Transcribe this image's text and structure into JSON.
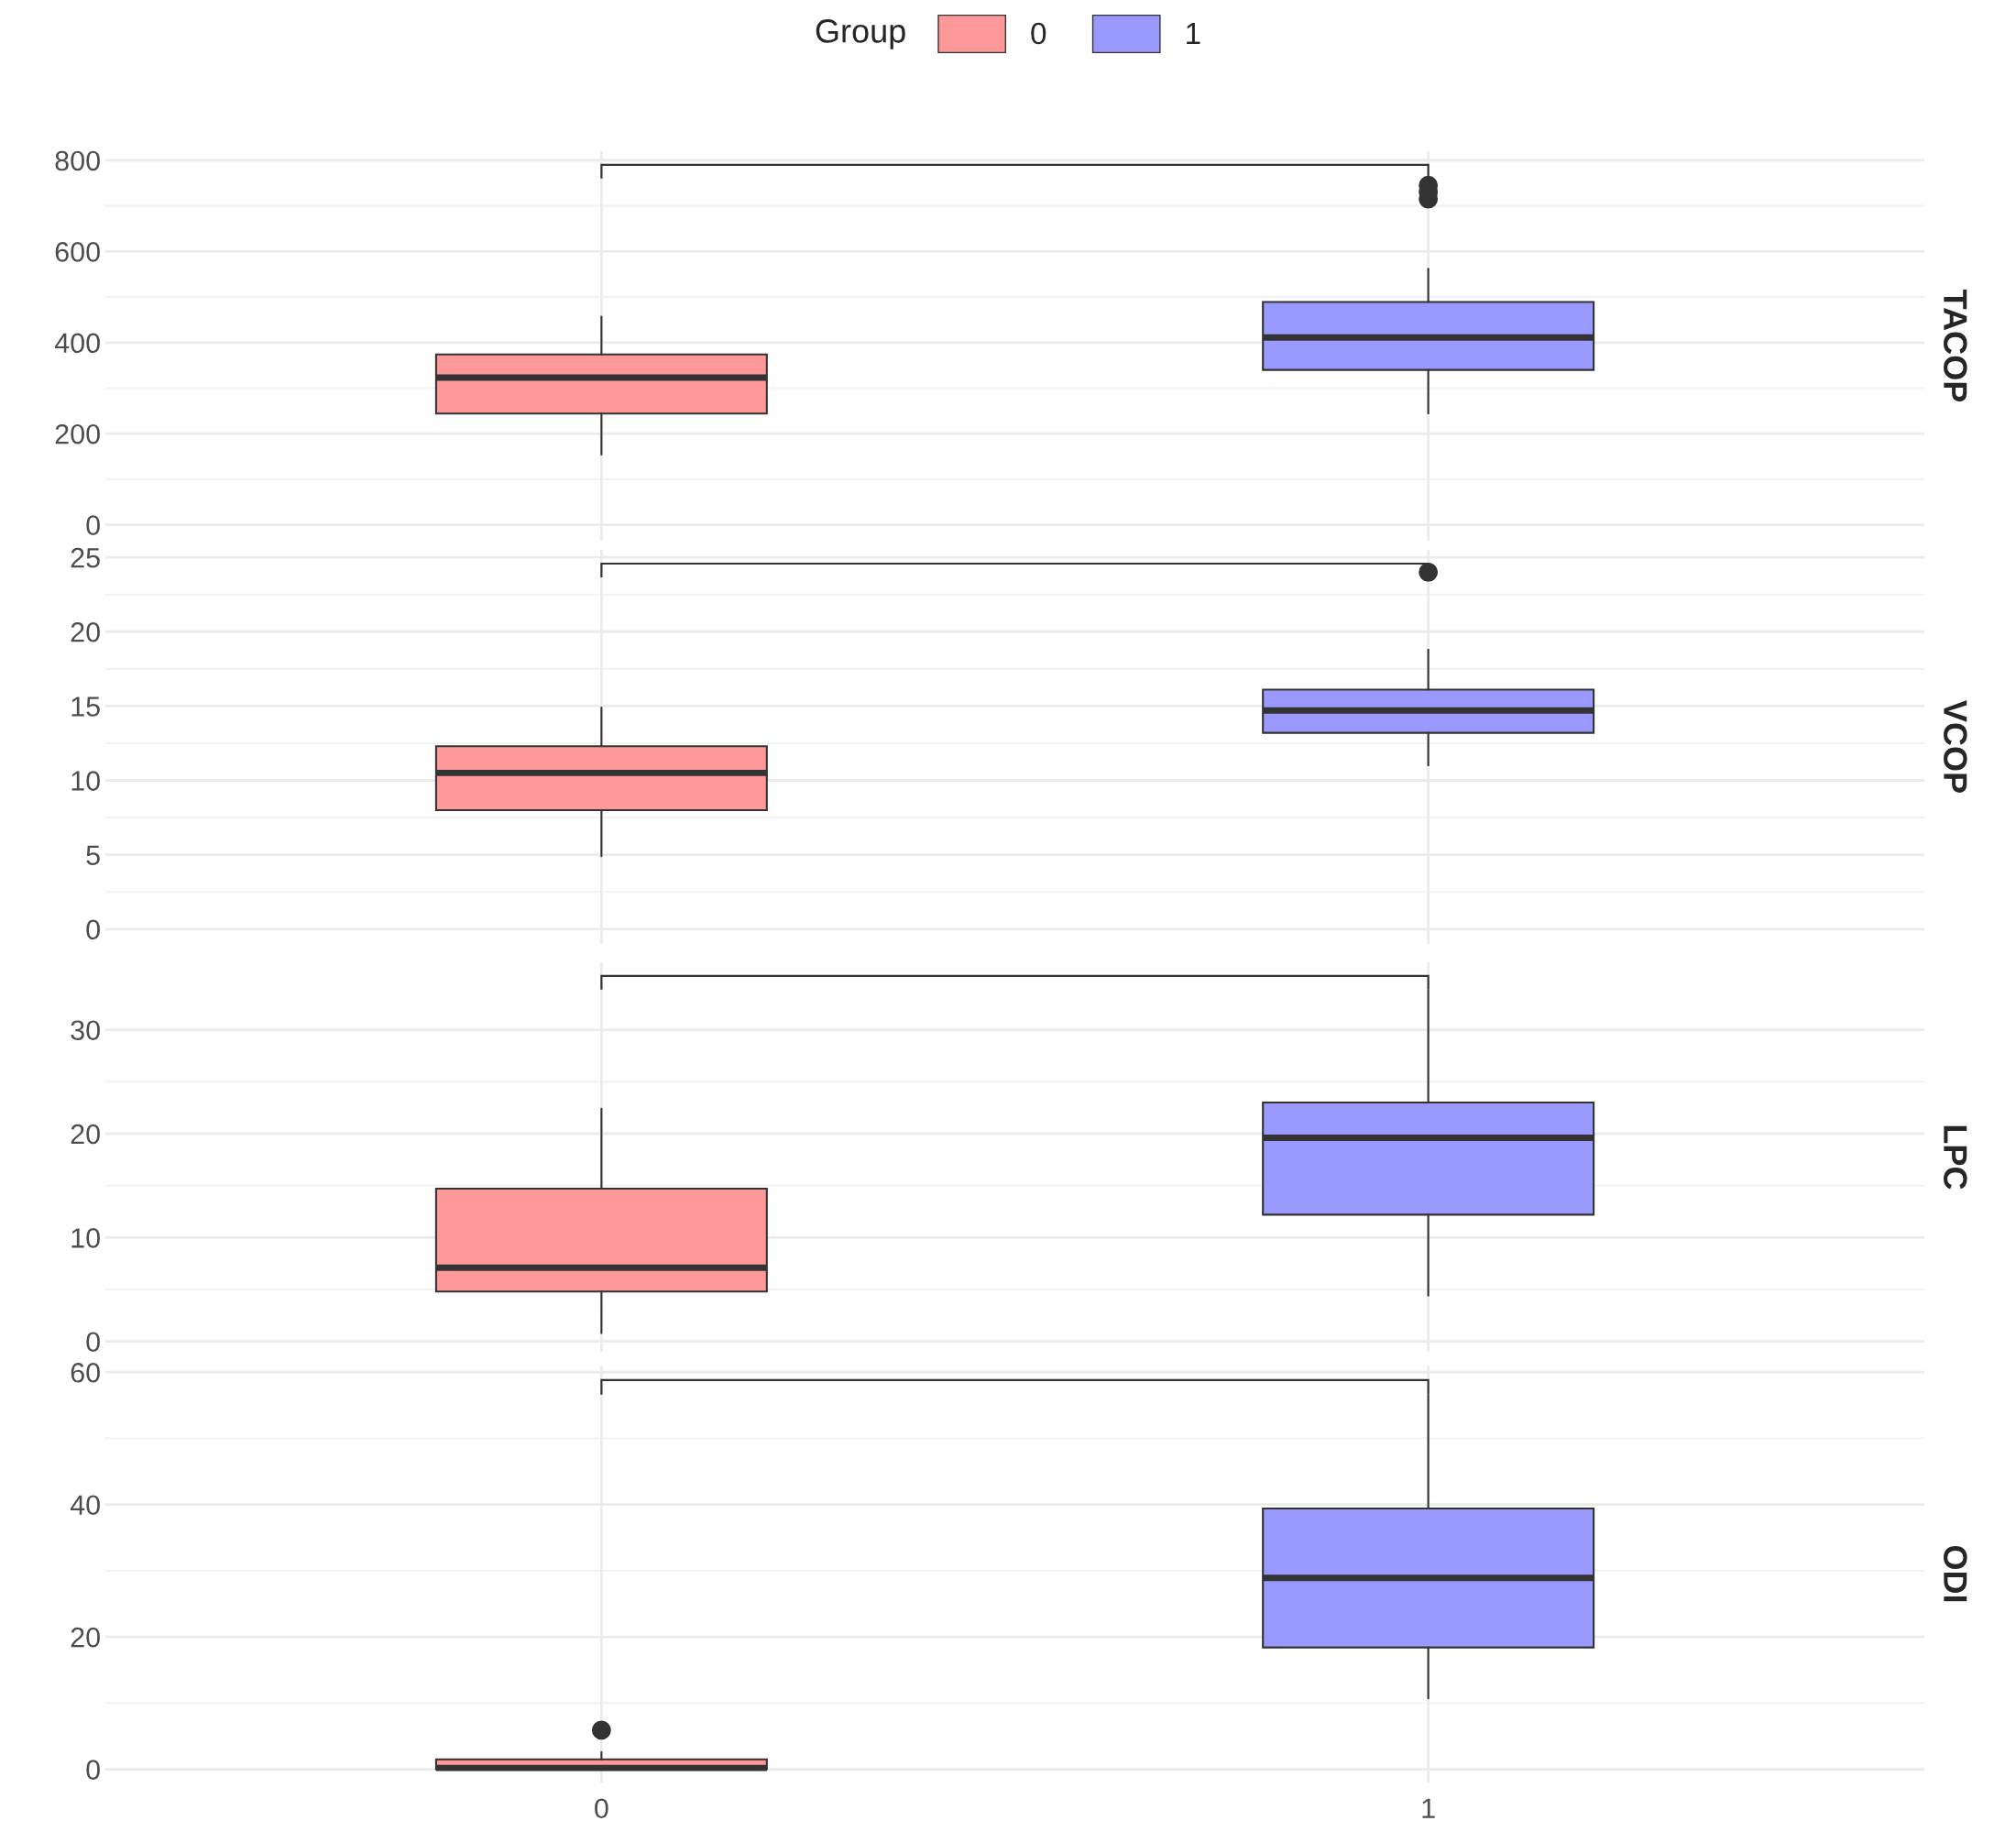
{
  "chart_data": [
    {
      "type": "box",
      "ylabel": "TACOP",
      "categories": [
        "0",
        "1"
      ],
      "legend_title": "Group",
      "legend": "top",
      "grid": true,
      "tick_labels": "y",
      "ylim": [
        -35,
        820
      ],
      "yticks": [
        0,
        200,
        400,
        600,
        800
      ],
      "series": [
        {
          "name": "0",
          "color": "#ff9999",
          "x": [
            "0"
          ],
          "boxes": [
            {
              "low": 154,
              "q1": 244,
              "median": 323,
              "q3": 374,
              "high": 457
            }
          ]
        },
        {
          "name": "1",
          "color": "#9999ff",
          "x": [
            "1"
          ],
          "boxes": [
            {
              "low": 244,
              "q1": 340,
              "median": 411,
              "q3": 489,
              "high": 562,
              "outliers": [
                715,
                730,
                745
              ]
            }
          ]
        }
      ]
    },
    {
      "type": "box",
      "ylabel": "VCOP",
      "categories": [
        "0",
        "1"
      ],
      "grid": true,
      "tick_labels": "y",
      "ylim": [
        -1,
        25.5
      ],
      "yticks": [
        0,
        5,
        10,
        15,
        20,
        25
      ],
      "series": [
        {
          "color": "#ff9999",
          "x": [
            "0"
          ],
          "boxes": [
            {
              "low": 4.9,
              "q1": 8.0,
              "median": 10.5,
              "q3": 12.3,
              "high": 14.9
            }
          ]
        },
        {
          "color": "#9999ff",
          "x": [
            "1"
          ],
          "boxes": [
            {
              "low": 11.0,
              "q1": 13.2,
              "median": 14.7,
              "q3": 16.1,
              "high": 18.8,
              "outliers": [
                24.0
              ]
            }
          ]
        }
      ]
    },
    {
      "type": "box",
      "ylabel": "LPC",
      "categories": [
        "0",
        "1"
      ],
      "grid": true,
      "tick_labels": "y",
      "ylim": [
        -1,
        36.5
      ],
      "yticks": [
        0,
        10,
        20,
        30
      ],
      "series": [
        {
          "color": "#ff9999",
          "x": [
            "0"
          ],
          "boxes": [
            {
              "low": 0.8,
              "q1": 4.8,
              "median": 7.1,
              "q3": 14.7,
              "high": 22.4
            }
          ]
        },
        {
          "color": "#9999ff",
          "x": [
            "1"
          ],
          "boxes": [
            {
              "low": 4.4,
              "q1": 12.2,
              "median": 19.6,
              "q3": 23.0,
              "high": 33.8
            }
          ]
        }
      ]
    },
    {
      "type": "box",
      "ylabel": "ODI",
      "categories": [
        "0",
        "1"
      ],
      "grid": true,
      "ylim": [
        -2,
        61
      ],
      "yticks": [
        0,
        20,
        40,
        60
      ],
      "series": [
        {
          "color": "#ff9999",
          "x": [
            "0"
          ],
          "boxes": [
            {
              "low": 0,
              "q1": 0,
              "median": 0.2,
              "q3": 1.5,
              "high": 2.6,
              "outliers": [
                5.9
              ]
            }
          ]
        },
        {
          "color": "#9999ff",
          "x": [
            "1"
          ],
          "boxes": [
            {
              "low": 10.7,
              "q1": 18.4,
              "median": 28.9,
              "q3": 39.4,
              "high": 56.5
            }
          ]
        }
      ]
    }
  ]
}
